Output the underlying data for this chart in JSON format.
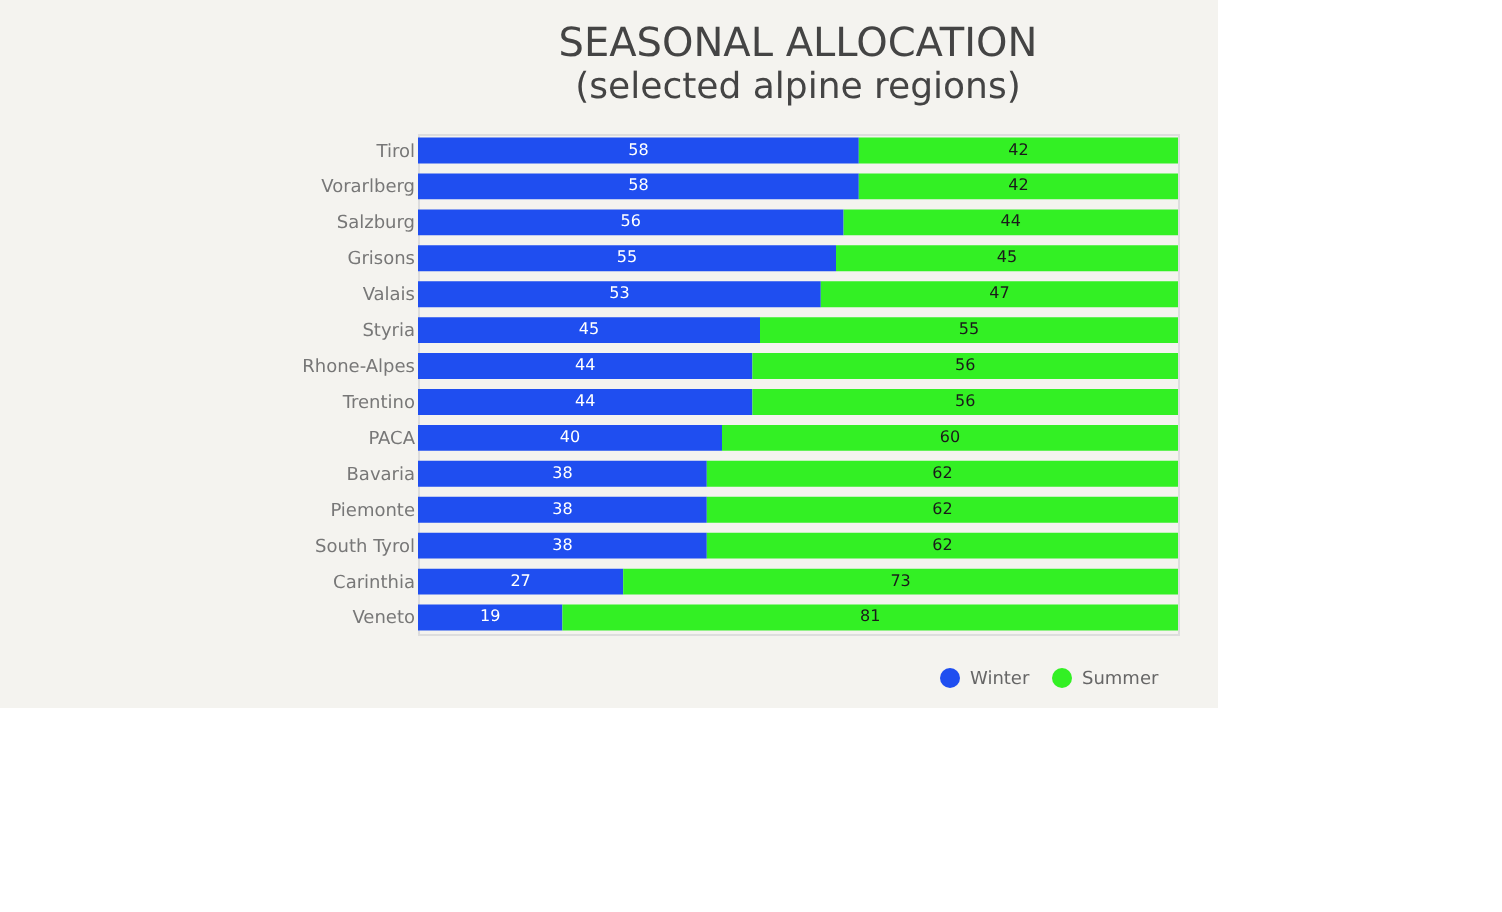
{
  "chart_data": {
    "type": "bar",
    "orientation": "horizontal",
    "stacked": true,
    "title": "SEASONAL ALLOCATION",
    "subtitle": "(selected alpine regions)",
    "categories": [
      "Tirol",
      "Vorarlberg",
      "Salzburg",
      "Grisons",
      "Valais",
      "Styria",
      "Rhone-Alpes",
      "Trentino",
      "PACA",
      "Bavaria",
      "Piemonte",
      "South Tyrol",
      "Carinthia",
      "Veneto"
    ],
    "series": [
      {
        "name": "Winter",
        "color": "#1f4ef0",
        "values": [
          58,
          58,
          56,
          55,
          53,
          45,
          44,
          44,
          40,
          38,
          38,
          38,
          27,
          19
        ]
      },
      {
        "name": "Summer",
        "color": "#33f024",
        "values": [
          42,
          42,
          44,
          45,
          47,
          55,
          56,
          56,
          60,
          62,
          62,
          62,
          73,
          81
        ]
      }
    ],
    "data_labels": true,
    "legend": "bottom right",
    "grid": false,
    "tick_labels": "y"
  }
}
